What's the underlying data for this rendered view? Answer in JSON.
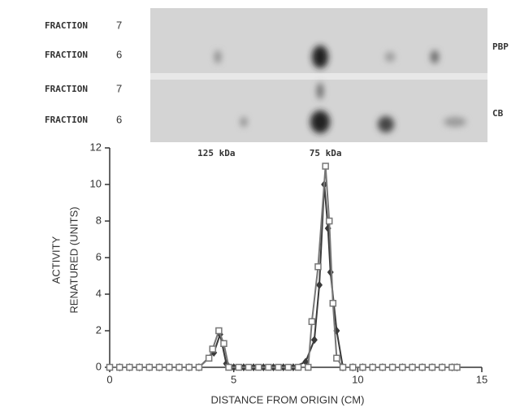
{
  "chart_data": {
    "type": "line",
    "xlabel": "DISTANCE FROM ORIGIN (CM)",
    "ylabel": [
      "ACTIVITY",
      "RENATURED (UNITS)"
    ],
    "xlim": [
      0,
      15
    ],
    "xticks": [
      0,
      5,
      10,
      15
    ],
    "ylim": [
      0,
      12
    ],
    "yticks": [
      0,
      2,
      4,
      6,
      8,
      10,
      12
    ],
    "annotations": [
      {
        "text": "125 kDa",
        "x": 4.3
      },
      {
        "text": "75 kDa",
        "x": 8.7
      }
    ],
    "gel_labels": [
      {
        "label": "FRACTION",
        "number": "7"
      },
      {
        "label": "FRACTION",
        "number": "6"
      },
      {
        "label": "FRACTION",
        "number": "7"
      },
      {
        "label": "FRACTION",
        "number": "6"
      }
    ],
    "gel_tags": [
      "PBP",
      "CB"
    ],
    "series": [
      {
        "marker": "diamond",
        "color": "#3a3a3a",
        "x": [
          0,
          0.4,
          0.8,
          1.2,
          1.6,
          2.0,
          2.4,
          2.8,
          3.2,
          3.6,
          4.2,
          4.45,
          4.7,
          5.0,
          5.4,
          5.8,
          6.2,
          6.6,
          7.0,
          7.4,
          7.9,
          8.25,
          8.45,
          8.65,
          8.8,
          8.9,
          9.15,
          9.4,
          9.8,
          10.2,
          10.6,
          11.0,
          11.4,
          11.8,
          12.2,
          12.6,
          13.0,
          13.4,
          13.8,
          14.0
        ],
        "values": [
          0,
          0,
          0,
          0,
          0,
          0,
          0,
          0,
          0,
          0,
          0.8,
          1.8,
          0.2,
          0,
          0,
          0,
          0,
          0,
          0,
          0,
          0.3,
          1.5,
          4.5,
          10,
          7.6,
          5.2,
          2,
          0,
          0,
          0,
          0,
          0,
          0,
          0,
          0,
          0,
          0,
          0,
          0,
          0
        ]
      },
      {
        "marker": "square",
        "color": "#777777",
        "x": [
          0,
          0.4,
          0.8,
          1.2,
          1.6,
          2.0,
          2.4,
          2.8,
          3.2,
          3.6,
          4.0,
          4.15,
          4.4,
          4.6,
          4.8,
          5.2,
          5.6,
          6.0,
          6.4,
          6.8,
          7.2,
          7.6,
          8.0,
          8.15,
          8.4,
          8.7,
          8.85,
          9.0,
          9.15,
          9.4,
          9.8,
          10.2,
          10.6,
          11.0,
          11.4,
          11.8,
          12.2,
          12.6,
          13.0,
          13.4,
          13.8,
          14.0
        ],
        "values": [
          0,
          0,
          0,
          0,
          0,
          0,
          0,
          0,
          0,
          0,
          0.5,
          1,
          2,
          1.3,
          0,
          0,
          0,
          0,
          0,
          0,
          0,
          0,
          0,
          2.5,
          5.5,
          11,
          8,
          3.5,
          0.5,
          0,
          0,
          0,
          0,
          0,
          0,
          0,
          0,
          0,
          0,
          0,
          0,
          0
        ]
      }
    ]
  }
}
